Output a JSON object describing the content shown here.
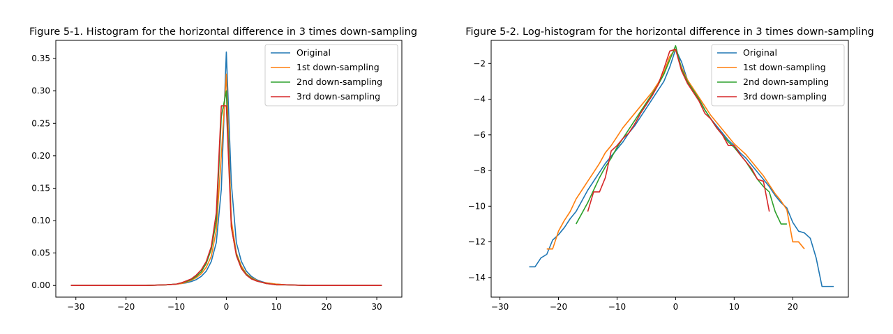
{
  "chart_data": [
    {
      "type": "line",
      "title": "Figure 5-1. Histogram for the horizontal difference in 3 times down-sampling",
      "xlabel": "",
      "ylabel": "",
      "xlim": [
        -34,
        35
      ],
      "ylim": [
        -0.018,
        0.378
      ],
      "xticks": [
        -30,
        -20,
        -10,
        0,
        10,
        20,
        30
      ],
      "yticks": [
        0.0,
        0.05,
        0.1,
        0.15,
        0.2,
        0.25,
        0.3,
        0.35
      ],
      "ytick_labels": [
        "0.00",
        "0.05",
        "0.10",
        "0.15",
        "0.20",
        "0.25",
        "0.30",
        "0.35"
      ],
      "grid": false,
      "legend_position": "upper right",
      "series": [
        {
          "name": "Original",
          "color": "#1f77b4",
          "x": [
            -31,
            -28,
            -24,
            -20,
            -16,
            -12,
            -10,
            -9,
            -8,
            -7,
            -6,
            -5,
            -4,
            -3,
            -2,
            -1,
            0,
            1,
            2,
            3,
            4,
            5,
            6,
            7,
            8,
            9,
            10,
            12,
            16,
            20,
            24,
            28,
            31
          ],
          "y": [
            0,
            0,
            0,
            0,
            0,
            0.001,
            0.002,
            0.003,
            0.004,
            0.006,
            0.009,
            0.014,
            0.022,
            0.037,
            0.066,
            0.148,
            0.36,
            0.158,
            0.066,
            0.037,
            0.022,
            0.014,
            0.009,
            0.006,
            0.004,
            0.003,
            0.002,
            0.001,
            0,
            0,
            0,
            0,
            0
          ]
        },
        {
          "name": "1st down-sampling",
          "color": "#ff7f0e",
          "x": [
            -31,
            -28,
            -24,
            -20,
            -16,
            -12,
            -10,
            -9,
            -8,
            -7,
            -6,
            -5,
            -4,
            -3,
            -2,
            -1,
            0,
            1,
            2,
            3,
            4,
            5,
            6,
            7,
            8,
            9,
            10,
            12,
            16,
            20,
            24,
            28,
            31
          ],
          "y": [
            0,
            0,
            0,
            0,
            0,
            0.001,
            0.002,
            0.003,
            0.005,
            0.008,
            0.012,
            0.018,
            0.028,
            0.045,
            0.085,
            0.2,
            0.326,
            0.1,
            0.05,
            0.03,
            0.018,
            0.012,
            0.008,
            0.005,
            0.004,
            0.003,
            0.002,
            0.001,
            0,
            0,
            0,
            0,
            0
          ]
        },
        {
          "name": "2nd down-sampling",
          "color": "#2ca02c",
          "x": [
            -31,
            -28,
            -24,
            -20,
            -16,
            -12,
            -10,
            -9,
            -8,
            -7,
            -6,
            -5,
            -4,
            -3,
            -2,
            -1,
            0,
            1,
            2,
            3,
            4,
            5,
            6,
            7,
            8,
            9,
            10,
            12,
            16,
            20,
            24,
            28,
            31
          ],
          "y": [
            0,
            0,
            0,
            0,
            0,
            0.001,
            0.002,
            0.004,
            0.006,
            0.009,
            0.014,
            0.021,
            0.034,
            0.056,
            0.1,
            0.26,
            0.3,
            0.09,
            0.048,
            0.027,
            0.017,
            0.011,
            0.007,
            0.005,
            0.003,
            0.002,
            0.001,
            0.001,
            0,
            0,
            0,
            0,
            0
          ]
        },
        {
          "name": "3rd down-sampling",
          "color": "#d62728",
          "x": [
            -31,
            -28,
            -24,
            -20,
            -16,
            -12,
            -10,
            -9,
            -8,
            -7,
            -6,
            -5,
            -4,
            -3,
            -2,
            -1,
            0,
            1,
            2,
            3,
            4,
            5,
            6,
            7,
            8,
            9,
            10,
            12,
            16,
            20,
            24,
            28,
            31
          ],
          "y": [
            0,
            0,
            0,
            0,
            0,
            0.001,
            0.002,
            0.004,
            0.007,
            0.01,
            0.016,
            0.024,
            0.037,
            0.06,
            0.112,
            0.277,
            0.277,
            0.09,
            0.046,
            0.026,
            0.016,
            0.01,
            0.007,
            0.005,
            0.003,
            0.002,
            0.001,
            0.001,
            0,
            0,
            0,
            0,
            0
          ]
        }
      ]
    },
    {
      "type": "line",
      "title": "Figure 5-2. Log-histogram for the horizontal difference in 3 times down-sampling",
      "xlabel": "",
      "ylabel": "",
      "xlim": [
        -31.5,
        29.5
      ],
      "ylim": [
        -15.1,
        -0.7
      ],
      "xticks": [
        -30,
        -20,
        -10,
        0,
        10,
        20
      ],
      "yticks": [
        -14,
        -12,
        -10,
        -8,
        -6,
        -4,
        -2
      ],
      "ytick_labels": [
        "−14",
        "−12",
        "−10",
        "−8",
        "−6",
        "−4",
        "−2"
      ],
      "grid": false,
      "legend_position": "upper right",
      "series": [
        {
          "name": "Original",
          "color": "#1f77b4",
          "x": [
            -25,
            -24,
            -23,
            -22,
            -21,
            -20,
            -19,
            -18,
            -17,
            -16,
            -15,
            -14,
            -13,
            -12,
            -11,
            -10,
            -9,
            -8,
            -7,
            -6,
            -5,
            -4,
            -3,
            -2,
            -1,
            0,
            1,
            2,
            3,
            4,
            5,
            6,
            7,
            8,
            9,
            10,
            11,
            12,
            13,
            14,
            15,
            16,
            17,
            18,
            19,
            20,
            21,
            22,
            23,
            24,
            25,
            26,
            27
          ],
          "y": [
            -13.4,
            -13.4,
            -12.9,
            -12.7,
            -11.9,
            -11.6,
            -11.2,
            -10.7,
            -10.3,
            -9.7,
            -9.1,
            -8.6,
            -8.1,
            -7.6,
            -7.2,
            -6.8,
            -6.4,
            -5.9,
            -5.5,
            -5.0,
            -4.5,
            -4.0,
            -3.5,
            -3.0,
            -2.2,
            -1.2,
            -1.9,
            -2.9,
            -3.5,
            -4.0,
            -4.6,
            -5.1,
            -5.5,
            -5.9,
            -6.3,
            -6.6,
            -7.0,
            -7.3,
            -7.7,
            -8.1,
            -8.5,
            -8.9,
            -9.4,
            -9.8,
            -10.1,
            -10.9,
            -11.4,
            -11.5,
            -11.8,
            -12.9,
            -14.5,
            -14.5,
            -14.5
          ]
        },
        {
          "name": "1st down-sampling",
          "color": "#ff7f0e",
          "x": [
            -22,
            -21,
            -20,
            -19,
            -18,
            -17,
            -16,
            -15,
            -14,
            -13,
            -12,
            -11,
            -10,
            -9,
            -8,
            -7,
            -6,
            -5,
            -4,
            -3,
            -2,
            -1,
            0,
            1,
            2,
            3,
            4,
            5,
            6,
            7,
            8,
            9,
            10,
            11,
            12,
            13,
            14,
            15,
            16,
            17,
            18,
            19,
            20,
            21,
            22
          ],
          "y": [
            -12.4,
            -12.4,
            -11.4,
            -10.8,
            -10.3,
            -9.6,
            -9.1,
            -8.6,
            -8.1,
            -7.6,
            -7.0,
            -6.6,
            -6.1,
            -5.6,
            -5.2,
            -4.8,
            -4.4,
            -4.0,
            -3.6,
            -3.1,
            -2.5,
            -1.6,
            -1.2,
            -2.2,
            -2.9,
            -3.4,
            -3.9,
            -4.4,
            -4.9,
            -5.3,
            -5.7,
            -6.1,
            -6.5,
            -6.8,
            -7.1,
            -7.5,
            -7.9,
            -8.3,
            -8.8,
            -9.3,
            -9.7,
            -10.2,
            -12.0,
            -12.0,
            -12.4
          ]
        },
        {
          "name": "2nd down-sampling",
          "color": "#2ca02c",
          "x": [
            -17,
            -16,
            -15,
            -14,
            -13,
            -12,
            -11,
            -10,
            -9,
            -8,
            -7,
            -6,
            -5,
            -4,
            -3,
            -2,
            -1,
            0,
            1,
            2,
            3,
            4,
            5,
            6,
            7,
            8,
            9,
            10,
            11,
            12,
            13,
            14,
            15,
            16,
            17,
            18,
            19
          ],
          "y": [
            -11.0,
            -10.4,
            -9.8,
            -9.1,
            -8.4,
            -7.8,
            -7.3,
            -6.7,
            -6.2,
            -5.7,
            -5.2,
            -4.7,
            -4.2,
            -3.7,
            -3.2,
            -2.6,
            -1.8,
            -1.0,
            -2.3,
            -3.0,
            -3.5,
            -4.0,
            -4.6,
            -5.1,
            -5.6,
            -6.0,
            -6.4,
            -6.7,
            -7.1,
            -7.5,
            -8.0,
            -8.5,
            -8.9,
            -9.2,
            -10.3,
            -11.0,
            -11.0
          ]
        },
        {
          "name": "3rd down-sampling",
          "color": "#d62728",
          "x": [
            -15,
            -14,
            -13,
            -12,
            -11,
            -10,
            -9,
            -8,
            -7,
            -6,
            -5,
            -4,
            -3,
            -2,
            -1,
            0,
            1,
            2,
            3,
            4,
            5,
            6,
            7,
            8,
            9,
            10,
            11,
            12,
            13,
            14,
            15,
            16
          ],
          "y": [
            -10.3,
            -9.2,
            -9.2,
            -8.4,
            -6.9,
            -6.6,
            -6.2,
            -5.9,
            -5.4,
            -4.8,
            -4.3,
            -3.8,
            -3.2,
            -2.3,
            -1.3,
            -1.2,
            -2.4,
            -3.1,
            -3.6,
            -4.1,
            -4.8,
            -5.1,
            -5.6,
            -6.0,
            -6.6,
            -6.6,
            -7.1,
            -7.5,
            -7.9,
            -8.5,
            -8.6,
            -10.3
          ]
        }
      ]
    }
  ]
}
